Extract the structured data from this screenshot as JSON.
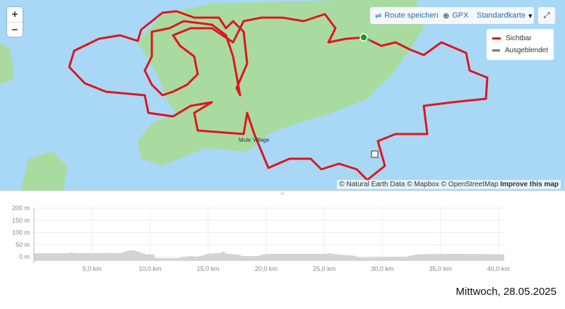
{
  "map": {
    "zoom_in": "+",
    "zoom_out": "−",
    "buttons": {
      "save_route": "Route speichern",
      "gpx": "GPX",
      "map_style": "Standardkarte"
    },
    "icons": {
      "save_route": "route-icon",
      "gpx": "download-icon",
      "map_style": "caret-down-icon",
      "fullscreen": "expand-icon"
    },
    "legend": [
      {
        "label": "Sichtbar",
        "color": "#e0141c"
      },
      {
        "label": "Ausgeblendet",
        "color": "#777777"
      }
    ],
    "place_label": "Mule Village",
    "attribution": {
      "text": "© Natural Earth Data © Mapbox © OpenStreetMap",
      "link": "Improve this map"
    },
    "colors": {
      "water": "#a8d8f5",
      "land": "#a9dba0",
      "route": "#e0141c",
      "start": "#1a9a1a"
    }
  },
  "chart_data": {
    "type": "area",
    "x_unit": "km",
    "y_ticks": [
      "200 m",
      "150 m",
      "100 m",
      "50 m",
      "0 m"
    ],
    "y_tick_values": [
      200,
      150,
      100,
      50,
      0
    ],
    "x_ticks": [
      "5,0 km",
      "10,0 km",
      "15,0 km",
      "20,0 km",
      "25,0 km",
      "30,0 km",
      "35,0 km",
      "40,0 km"
    ],
    "x_tick_values": [
      5,
      10,
      15,
      20,
      25,
      30,
      35,
      40
    ],
    "xlim": [
      0,
      40.5
    ],
    "ylim": [
      -15,
      200
    ],
    "grid": true,
    "fill_color": "#d4d4d4",
    "points": [
      [
        0,
        15
      ],
      [
        3,
        15
      ],
      [
        3.2,
        18
      ],
      [
        3.5,
        15
      ],
      [
        6.8,
        16
      ],
      [
        7.5,
        15
      ],
      [
        8,
        25
      ],
      [
        8.5,
        28
      ],
      [
        9,
        20
      ],
      [
        9.7,
        10
      ],
      [
        10.3,
        10
      ],
      [
        10.5,
        -5
      ],
      [
        12.5,
        -5
      ],
      [
        12.8,
        0
      ],
      [
        13.5,
        3
      ],
      [
        14,
        0
      ],
      [
        14.5,
        5
      ],
      [
        15,
        13
      ],
      [
        16,
        15
      ],
      [
        16.3,
        22
      ],
      [
        16.6,
        12
      ],
      [
        17.5,
        10
      ],
      [
        18,
        3
      ],
      [
        19.3,
        3
      ],
      [
        19.8,
        10
      ],
      [
        20.5,
        12
      ],
      [
        25,
        12
      ],
      [
        25.5,
        15
      ],
      [
        26,
        10
      ],
      [
        27.5,
        5
      ],
      [
        28,
        -2
      ],
      [
        32,
        0
      ],
      [
        33,
        10
      ],
      [
        35,
        12
      ],
      [
        37,
        12
      ],
      [
        40.5,
        10
      ]
    ]
  },
  "footer": {
    "date": "Mittwoch, 28.05.2025"
  }
}
